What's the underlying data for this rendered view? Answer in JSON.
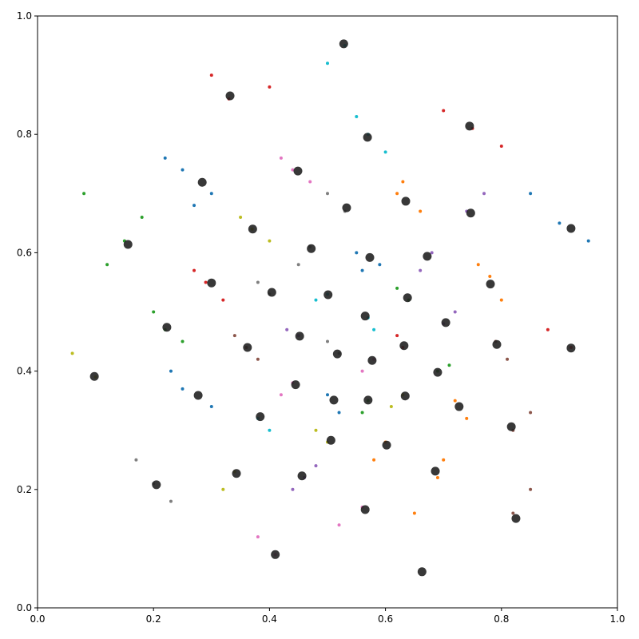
{
  "chart_data": {
    "type": "scatter",
    "xlim": [
      0,
      1
    ],
    "ylim": [
      0,
      1
    ],
    "xticks": [
      {
        "value": 0,
        "label": "0.0"
      },
      0.2,
      0.4,
      0.6,
      0.8,
      {
        "value": 1,
        "label": "1.0"
      }
    ],
    "yticks": [
      {
        "value": 0,
        "label": "0.0"
      },
      0.2,
      0.4,
      0.6,
      0.8,
      {
        "value": 1,
        "label": "1.0"
      }
    ],
    "grid": false,
    "series": [
      {
        "color": "#1f77b4",
        "x": [
          0.25,
          0.3,
          0.22,
          0.27,
          0.55,
          0.59,
          0.56,
          0.25,
          0.3,
          0.23,
          0.5,
          0.52,
          0.9,
          0.95,
          0.85
        ],
        "values": [
          0.74,
          0.7,
          0.76,
          0.68,
          0.6,
          0.58,
          0.57,
          0.37,
          0.34,
          0.4,
          0.36,
          0.33,
          0.65,
          0.62,
          0.7
        ]
      },
      {
        "color": "#ff7f0e",
        "x": [
          0.62,
          0.66,
          0.63,
          0.78,
          0.8,
          0.76,
          0.72,
          0.74,
          0.6,
          0.58,
          0.69,
          0.7,
          0.65
        ],
        "values": [
          0.7,
          0.67,
          0.72,
          0.56,
          0.52,
          0.58,
          0.35,
          0.32,
          0.28,
          0.25,
          0.22,
          0.25,
          0.16
        ]
      },
      {
        "color": "#2ca02c",
        "x": [
          0.15,
          0.12,
          0.18,
          0.08,
          0.22,
          0.2,
          0.25,
          0.64,
          0.62,
          0.69,
          0.71,
          0.57,
          0.56
        ],
        "values": [
          0.62,
          0.58,
          0.66,
          0.7,
          0.47,
          0.5,
          0.45,
          0.52,
          0.54,
          0.4,
          0.41,
          0.35,
          0.33
        ]
      },
      {
        "color": "#d62728",
        "x": [
          0.33,
          0.3,
          0.4,
          0.75,
          0.8,
          0.7,
          0.29,
          0.27,
          0.32,
          0.63,
          0.62,
          0.92,
          0.88
        ],
        "values": [
          0.86,
          0.9,
          0.88,
          0.81,
          0.78,
          0.84,
          0.55,
          0.57,
          0.52,
          0.44,
          0.46,
          0.44,
          0.47
        ]
      },
      {
        "color": "#9467bd",
        "x": [
          0.74,
          0.77,
          0.68,
          0.66,
          0.7,
          0.72,
          0.45,
          0.43,
          0.46,
          0.44,
          0.48
        ],
        "values": [
          0.67,
          0.7,
          0.6,
          0.57,
          0.48,
          0.5,
          0.46,
          0.47,
          0.22,
          0.2,
          0.24
        ]
      },
      {
        "color": "#8c564b",
        "x": [
          0.36,
          0.34,
          0.38,
          0.79,
          0.81,
          0.82,
          0.85,
          0.82,
          0.85
        ],
        "values": [
          0.44,
          0.46,
          0.42,
          0.45,
          0.42,
          0.3,
          0.33,
          0.16,
          0.2
        ]
      },
      {
        "color": "#e377c2",
        "x": [
          0.44,
          0.42,
          0.47,
          0.58,
          0.56,
          0.44,
          0.42,
          0.56,
          0.52,
          0.41,
          0.38
        ],
        "values": [
          0.74,
          0.76,
          0.72,
          0.42,
          0.4,
          0.38,
          0.36,
          0.17,
          0.14,
          0.09,
          0.12
        ]
      },
      {
        "color": "#7f7f7f",
        "x": [
          0.53,
          0.5,
          0.47,
          0.45,
          0.4,
          0.38,
          0.52,
          0.5,
          0.2,
          0.17,
          0.23
        ],
        "values": [
          0.67,
          0.7,
          0.61,
          0.58,
          0.53,
          0.55,
          0.43,
          0.45,
          0.21,
          0.25,
          0.18
        ]
      },
      {
        "color": "#bcbd22",
        "x": [
          0.37,
          0.35,
          0.4,
          0.63,
          0.61,
          0.5,
          0.48,
          0.34,
          0.32,
          0.1,
          0.06
        ],
        "values": [
          0.64,
          0.66,
          0.62,
          0.36,
          0.34,
          0.28,
          0.3,
          0.23,
          0.2,
          0.39,
          0.43
        ]
      },
      {
        "color": "#17becf",
        "x": [
          0.53,
          0.5,
          0.57,
          0.55,
          0.6,
          0.5,
          0.48,
          0.57,
          0.58,
          0.38,
          0.4
        ],
        "values": [
          0.95,
          0.92,
          0.8,
          0.83,
          0.77,
          0.53,
          0.52,
          0.49,
          0.47,
          0.32,
          0.3
        ]
      },
      {
        "color": "#222222",
        "centroid": true,
        "x": [
          0.528,
          0.332,
          0.745,
          0.569,
          0.449,
          0.284,
          0.635,
          0.533,
          0.747,
          0.371,
          0.92,
          0.156,
          0.472,
          0.573,
          0.672,
          0.781,
          0.3,
          0.404,
          0.501,
          0.638,
          0.565,
          0.704,
          0.223,
          0.452,
          0.792,
          0.362,
          0.632,
          0.517,
          0.92,
          0.577,
          0.098,
          0.69,
          0.445,
          0.277,
          0.634,
          0.511,
          0.57,
          0.727,
          0.384,
          0.817,
          0.506,
          0.602,
          0.686,
          0.343,
          0.456,
          0.205,
          0.565,
          0.825,
          0.41,
          0.663
        ],
        "values": [
          0.953,
          0.865,
          0.814,
          0.795,
          0.738,
          0.719,
          0.687,
          0.676,
          0.667,
          0.64,
          0.641,
          0.614,
          0.607,
          0.592,
          0.594,
          0.547,
          0.549,
          0.533,
          0.529,
          0.524,
          0.493,
          0.482,
          0.474,
          0.459,
          0.445,
          0.44,
          0.443,
          0.429,
          0.439,
          0.418,
          0.391,
          0.398,
          0.377,
          0.359,
          0.358,
          0.351,
          0.351,
          0.34,
          0.323,
          0.306,
          0.283,
          0.275,
          0.231,
          0.227,
          0.223,
          0.208,
          0.166,
          0.151,
          0.09,
          0.061
        ]
      }
    ]
  }
}
